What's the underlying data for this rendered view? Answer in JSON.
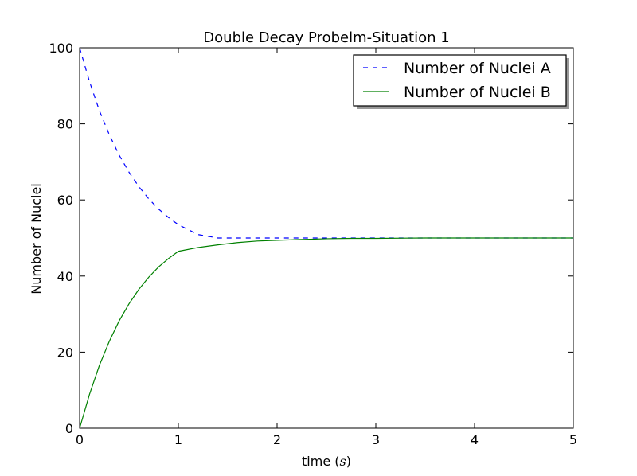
{
  "chart_data": {
    "type": "line",
    "title": "Double Decay Probelm-Situation 1",
    "xlabel_text": "time",
    "xlabel_unit": "s",
    "ylabel": "Number of Nuclei",
    "xlim": [
      0,
      5
    ],
    "ylim": [
      0,
      100
    ],
    "xticks": [
      "0",
      "1",
      "2",
      "3",
      "4",
      "5"
    ],
    "yticks": [
      "0",
      "20",
      "40",
      "60",
      "80",
      "100"
    ],
    "grid": false,
    "legend_position": "top-right",
    "series": [
      {
        "name": "Number of Nuclei A",
        "color": "#0000ff",
        "style": "dashed",
        "x": [
          0,
          0.1,
          0.2,
          0.3,
          0.4,
          0.5,
          0.6,
          0.7,
          0.8,
          0.9,
          1.0,
          1.2,
          1.4,
          1.6,
          1.8,
          2.0,
          2.25,
          2.5,
          2.75,
          3.0,
          3.5,
          4.0,
          4.5,
          5.0
        ],
        "values": [
          100,
          91.1,
          83.5,
          77.2,
          71.8,
          67.3,
          63.5,
          60.3,
          57.6,
          55.4,
          53.5,
          50.9,
          50.0,
          50.0,
          50.0,
          50.0,
          50.0,
          50.0,
          50.0,
          50.0,
          50.0,
          50.0,
          50.0,
          50.0
        ]
      },
      {
        "name": "Number of Nuclei B",
        "color": "#008000",
        "style": "solid",
        "x": [
          0,
          0.1,
          0.2,
          0.3,
          0.4,
          0.5,
          0.6,
          0.7,
          0.8,
          0.9,
          1.0,
          1.2,
          1.4,
          1.6,
          1.8,
          2.0,
          2.25,
          2.5,
          2.75,
          3.0,
          3.5,
          4.0,
          4.5,
          5.0
        ],
        "values": [
          0,
          8.9,
          16.5,
          22.8,
          28.2,
          32.7,
          36.5,
          39.7,
          42.4,
          44.6,
          46.5,
          47.5,
          48.2,
          48.8,
          49.2,
          49.4,
          49.6,
          49.8,
          49.9,
          49.9,
          50.0,
          50.0,
          50.0,
          50.0
        ]
      }
    ]
  }
}
